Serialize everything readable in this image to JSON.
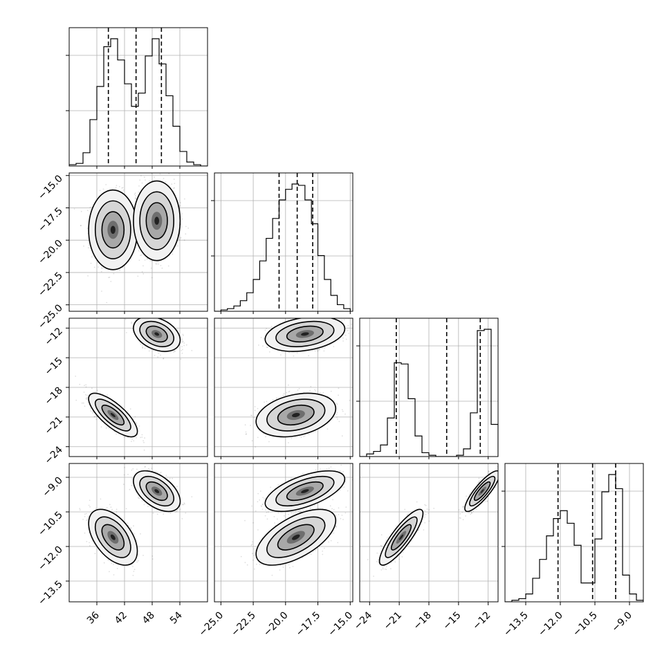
{
  "chart_data": {
    "type": "corner",
    "grid": true,
    "parameters": [
      {
        "range": [
          30,
          60
        ],
        "ticks": [
          36,
          42,
          48,
          54
        ],
        "tick_labels": [
          "36",
          "42",
          "48",
          "54"
        ],
        "quantiles": [
          38.5,
          44.5,
          50.0
        ],
        "hist_edges": [
          30,
          31.5,
          33,
          34.5,
          36,
          37.5,
          39,
          40.5,
          42,
          43.5,
          45,
          46.5,
          48,
          49.5,
          51,
          52.5,
          54,
          55.5,
          57,
          58.5,
          60
        ],
        "hist_counts": [
          1,
          2,
          10,
          35,
          60,
          90,
          96,
          80,
          62,
          45,
          55,
          83,
          96,
          77,
          53,
          30,
          11,
          3,
          1,
          0
        ]
      },
      {
        "range": [
          -25.5,
          -14.8
        ],
        "ticks": [
          -25.0,
          -22.5,
          -20.0,
          -17.5,
          -15.0
        ],
        "tick_labels": [
          "−25.0",
          "−22.5",
          "−20.0",
          "−17.5",
          "−15.0"
        ],
        "quantiles": [
          -20.5,
          -19.1,
          -17.9
        ],
        "hist_edges": [
          -25.5,
          -25,
          -24.5,
          -24,
          -23.5,
          -23,
          -22.5,
          -22,
          -21.5,
          -21,
          -20.5,
          -20,
          -19.5,
          -19,
          -18.5,
          -18,
          -17.5,
          -17,
          -16.5,
          -16,
          -15.5,
          -15
        ],
        "hist_counts": [
          0,
          1,
          2,
          4,
          8,
          14,
          24,
          38,
          55,
          70,
          84,
          92,
          96,
          95,
          84,
          66,
          42,
          24,
          12,
          5,
          2,
          0
        ]
      },
      {
        "range": [
          -25,
          -11
        ],
        "ticks": [
          -24,
          -21,
          -18,
          -15,
          -12
        ],
        "tick_labels": [
          "−24",
          "−21",
          "−18",
          "−15",
          "−12"
        ],
        "quantiles": [
          -21.3,
          -16.2,
          -12.8
        ],
        "hist_edges": [
          -25,
          -24.3,
          -23.6,
          -22.9,
          -22.2,
          -21.5,
          -20.8,
          -20.1,
          -19.4,
          -18.7,
          -18,
          -17.3,
          -16.6,
          -15.9,
          -15.2,
          -14.5,
          -13.8,
          -13.1,
          -12.4,
          -11.7,
          -11
        ],
        "hist_counts": [
          0,
          2,
          4,
          9,
          30,
          73,
          72,
          45,
          16,
          3,
          1,
          0,
          0,
          0,
          1,
          6,
          34,
          98,
          99,
          25
        ]
      },
      {
        "range": [
          -14.4,
          -8.4
        ],
        "ticks": [
          -13.5,
          -12.0,
          -10.5,
          -9.0
        ],
        "tick_labels": [
          "−13.5",
          "−12.0",
          "−10.5",
          "−9.0"
        ],
        "quantiles": [
          -12.1,
          -10.6,
          -9.6
        ],
        "hist_edges": [
          -14.4,
          -14.1,
          -13.8,
          -13.5,
          -13.2,
          -12.9,
          -12.6,
          -12.3,
          -12,
          -11.7,
          -11.4,
          -11.1,
          -10.8,
          -10.5,
          -10.2,
          -9.9,
          -9.6,
          -9.3,
          -9,
          -8.7,
          -8.4
        ],
        "hist_counts": [
          0,
          1,
          2,
          5,
          15,
          27,
          42,
          53,
          58,
          50,
          36,
          12,
          12,
          40,
          70,
          81,
          72,
          17,
          5,
          1
        ]
      }
    ],
    "modes": [
      {
        "mean": [
          39.5,
          -19.2,
          -20.8,
          -11.6
        ],
        "sd": [
          2.4,
          1.4,
          1.0,
          0.55
        ]
      },
      {
        "mean": [
          49.0,
          -18.5,
          -12.6,
          -9.6
        ],
        "sd": [
          2.3,
          1.4,
          0.8,
          0.4
        ]
      }
    ]
  }
}
